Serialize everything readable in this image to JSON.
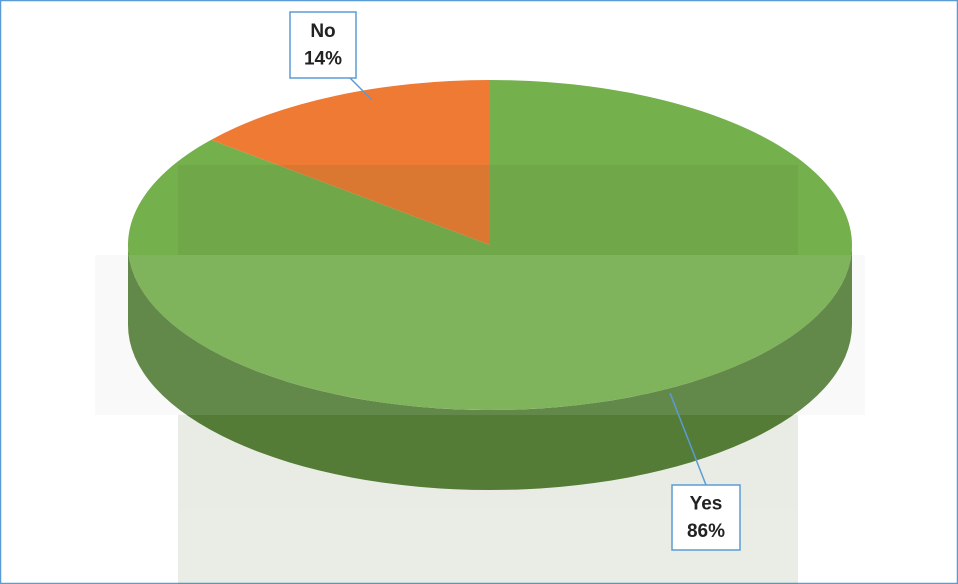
{
  "chart_data": {
    "type": "pie3d",
    "categories": [
      "Yes",
      "No"
    ],
    "values": [
      86,
      14
    ],
    "value_labels": [
      "86%",
      "14%"
    ],
    "colors": [
      "#74b04c",
      "#ee7a33"
    ]
  }
}
